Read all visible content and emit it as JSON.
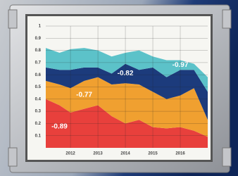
{
  "chart_data": {
    "type": "stacked-area",
    "x": [
      2011.1,
      2011.6,
      2012.0,
      2012.5,
      2013.0,
      2013.5,
      2014.0,
      2014.5,
      2015.0,
      2015.5,
      2016.0,
      2016.5,
      2017.0
    ],
    "xlim": [
      2011.1,
      2017.0
    ],
    "xticks": [
      2012,
      2013,
      2014,
      2015,
      2016
    ],
    "ylim": [
      0,
      1
    ],
    "yticks": [
      0.1,
      0.2,
      0.3,
      0.4,
      0.5,
      0.6,
      0.7,
      0.8,
      0.9,
      1.0
    ],
    "grid": true,
    "series": [
      {
        "name": "-0.89",
        "color": "#e8403c",
        "values": [
          0.4,
          0.35,
          0.29,
          0.32,
          0.35,
          0.26,
          0.2,
          0.23,
          0.17,
          0.16,
          0.17,
          0.14,
          0.09
        ]
      },
      {
        "name": "-0.77",
        "color": "#f0a030",
        "values": [
          0.15,
          0.17,
          0.2,
          0.23,
          0.23,
          0.26,
          0.33,
          0.29,
          0.29,
          0.24,
          0.26,
          0.35,
          0.14
        ]
      },
      {
        "name": "-0.82",
        "color": "#1c3b7c",
        "values": [
          0.11,
          0.12,
          0.15,
          0.11,
          0.08,
          0.09,
          0.16,
          0.12,
          0.2,
          0.18,
          0.21,
          0.15,
          0.23
        ]
      },
      {
        "name": "-0.97",
        "color": "#5cc2c9",
        "values": [
          0.16,
          0.14,
          0.17,
          0.16,
          0.14,
          0.14,
          0.09,
          0.16,
          0.09,
          0.14,
          0.08,
          0.05,
          0.12
        ]
      }
    ]
  }
}
